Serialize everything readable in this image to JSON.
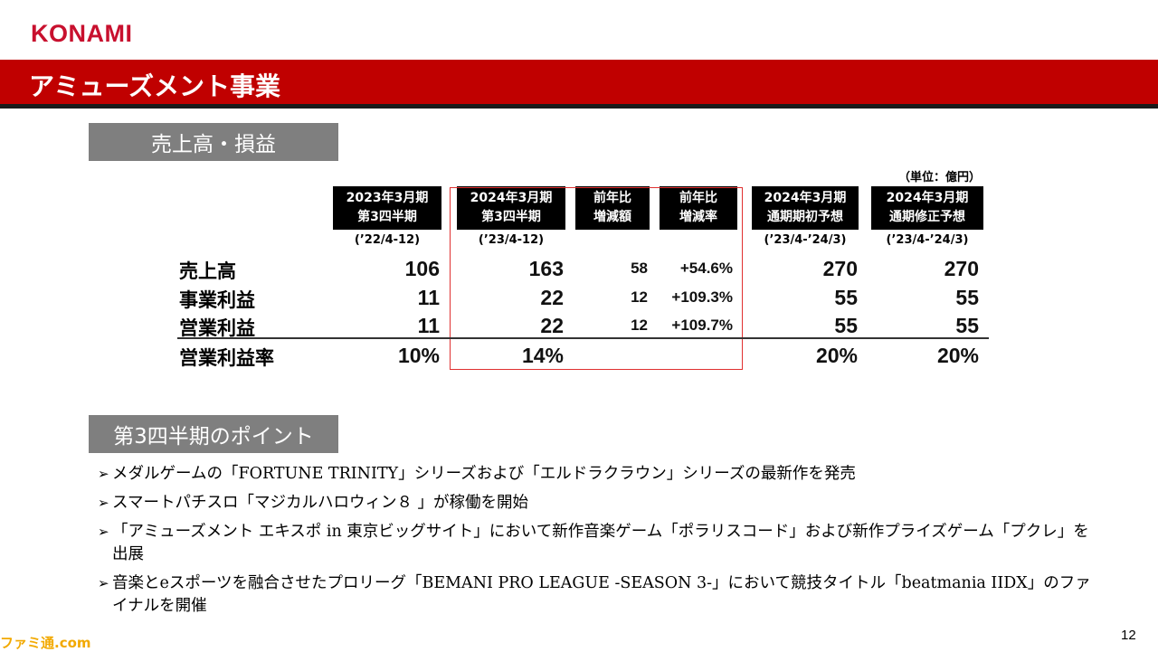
{
  "logo": "KONAMI",
  "title": "アミューズメント事業",
  "section1": "売上高・損益",
  "section2": "第3四半期のポイント",
  "unit": "（単位：億円）",
  "columns": [
    {
      "line1": "2023年3月期",
      "line2": "第3四半期",
      "period": "(’22/4-12)"
    },
    {
      "line1": "2024年3月期",
      "line2": "第3四半期",
      "period": "(’23/4-12)"
    },
    {
      "line1": "前年比",
      "line2": "増減額",
      "period": ""
    },
    {
      "line1": "前年比",
      "line2": "増減率",
      "period": ""
    },
    {
      "line1": "2024年3月期",
      "line2": "通期期初予想",
      "period": "(’23/4-’24/3)"
    },
    {
      "line1": "2024年3月期",
      "line2": "通期修正予想",
      "period": "(’23/4-’24/3)"
    }
  ],
  "rows": [
    {
      "label": "売上高",
      "values": [
        "106",
        "163",
        "58",
        "+54.6%",
        "270",
        "270"
      ]
    },
    {
      "label": "事業利益",
      "values": [
        "11",
        "22",
        "12",
        "+109.3%",
        "55",
        "55"
      ]
    },
    {
      "label": "営業利益",
      "values": [
        "11",
        "22",
        "12",
        "+109.7%",
        "55",
        "55"
      ]
    },
    {
      "label": "営業利益率",
      "values": [
        "10%",
        "14%",
        "",
        "",
        "20%",
        "20%"
      ]
    }
  ],
  "bullets": [
    "メダルゲームの「FORTUNE TRINITY」シリーズおよび「エルドラクラウン」シリーズの最新作を発売",
    "スマートパチスロ「マジカルハロウィン８ 」が稼働を開始",
    "「アミューズメント エキスポ in 東京ビッグサイト」において新作音楽ゲーム「ポラリスコード」および新作プライズゲーム「プクレ」を出展",
    "音楽とeスポーツを融合させたプロリーグ「BEMANI PRO LEAGUE -SEASON 3-」において競技タイトル「beatmania IIDX」のファイナルを開催"
  ],
  "page_number": "12",
  "watermark": "ファミ通.com",
  "colors": {
    "brand_red": "#c00000",
    "label_gray": "#7f7f7f",
    "highlight": "#e03030"
  }
}
